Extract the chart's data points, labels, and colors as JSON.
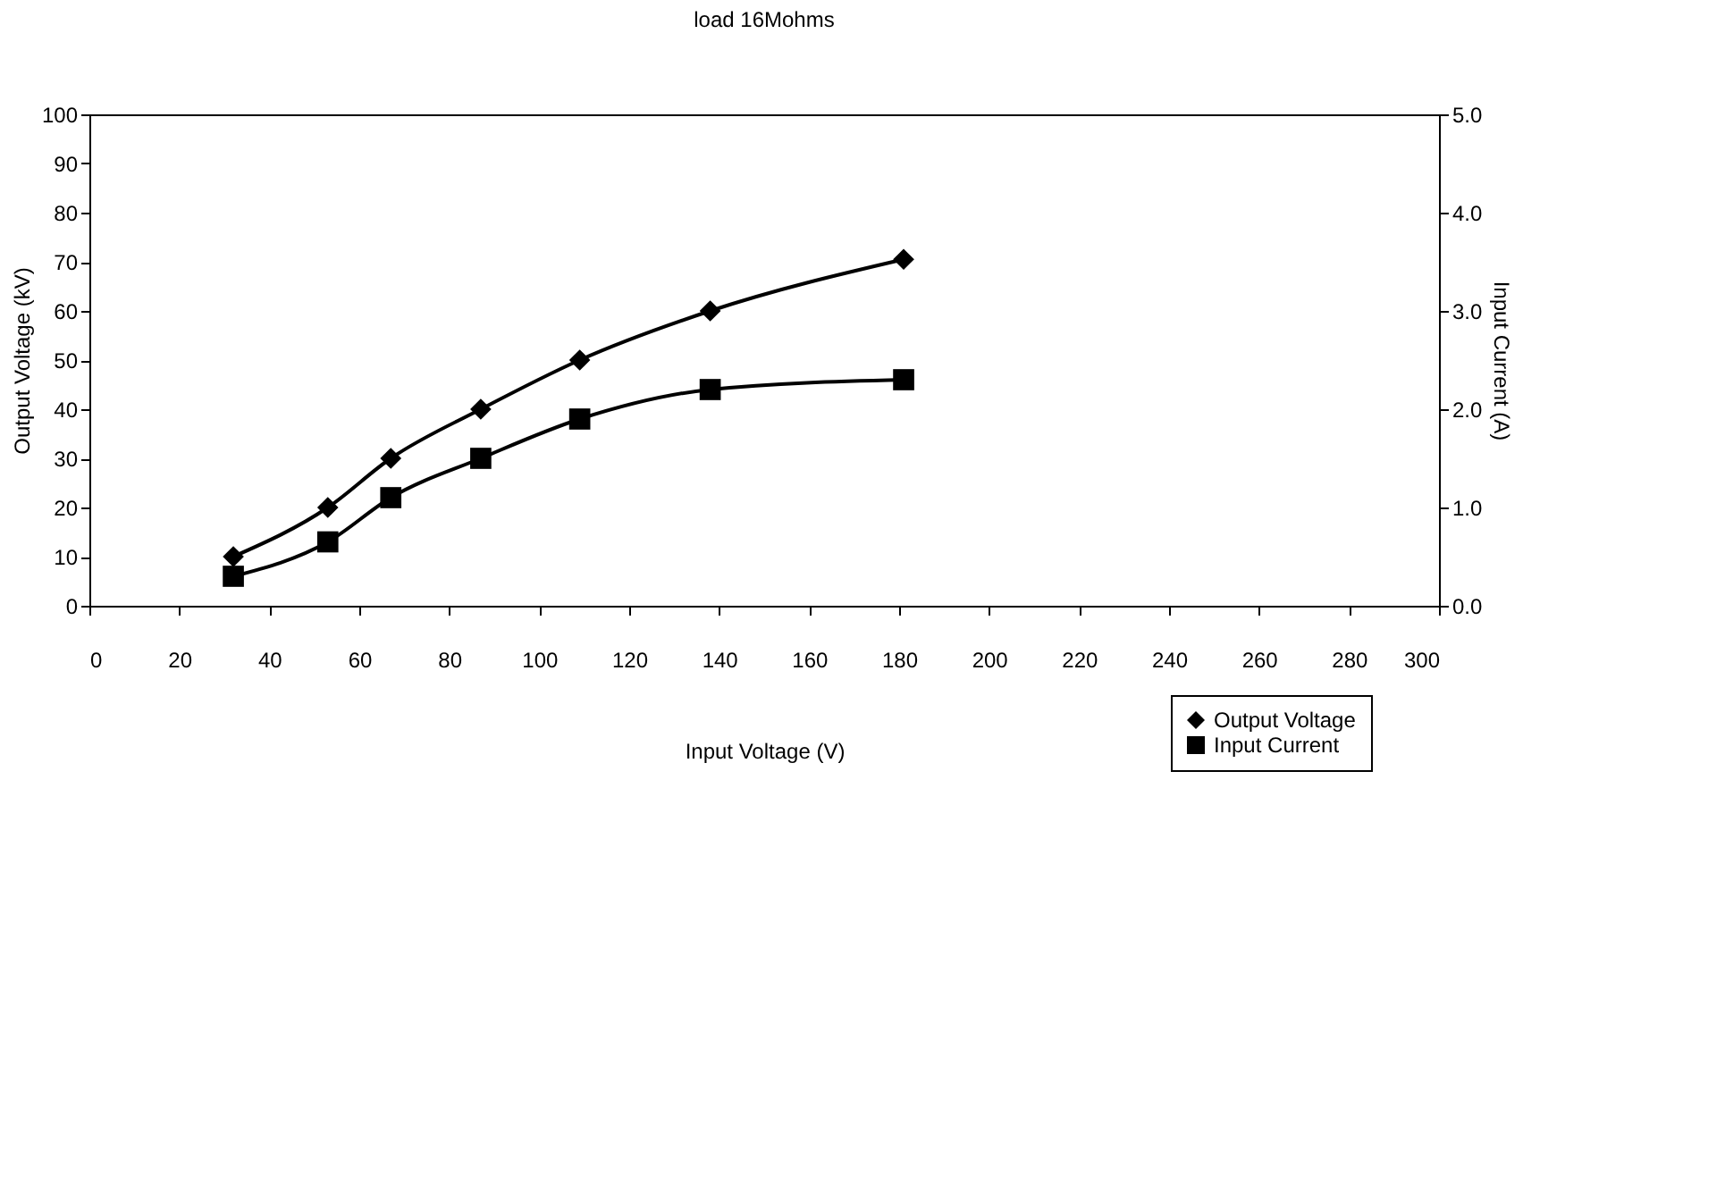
{
  "chart_data": {
    "type": "line",
    "title": "load 16Mohms",
    "xlabel": "Input Voltage (V)",
    "ylabel": "Output Voltage (kV)",
    "y2label": "Input Current (A)",
    "x": [
      32,
      53,
      67,
      87,
      109,
      138,
      181
    ],
    "series": [
      {
        "name": "Output Voltage",
        "color": "#000000",
        "marker": "diamond",
        "values": [
          10,
          20,
          30,
          40,
          50,
          60,
          70.5
        ]
      },
      {
        "name": "Input Current",
        "color": "#000000",
        "marker": "square",
        "axis": "y2",
        "values": [
          0.3,
          0.65,
          1.1,
          1.5,
          1.9,
          2.2,
          2.3
        ]
      }
    ],
    "xlim": [
      0,
      300
    ],
    "xticks": [
      0,
      20,
      40,
      60,
      80,
      100,
      120,
      140,
      160,
      180,
      200,
      220,
      240,
      260,
      280,
      300
    ],
    "ylim": [
      0,
      100
    ],
    "yticks": [
      0,
      10,
      20,
      30,
      40,
      50,
      60,
      70,
      80,
      90,
      100
    ],
    "y2lim": [
      0,
      5
    ],
    "y2ticks": [
      {
        "value": 0,
        "label": "0.0"
      },
      {
        "value": 1,
        "label": "1.0"
      },
      {
        "value": 2,
        "label": "2.0"
      },
      {
        "value": 3,
        "label": "3.0"
      },
      {
        "value": 4,
        "label": "4.0"
      },
      {
        "value": 5,
        "label": "5.0"
      }
    ],
    "grid": false,
    "legend": "bottom right",
    "line_style": "solid"
  }
}
